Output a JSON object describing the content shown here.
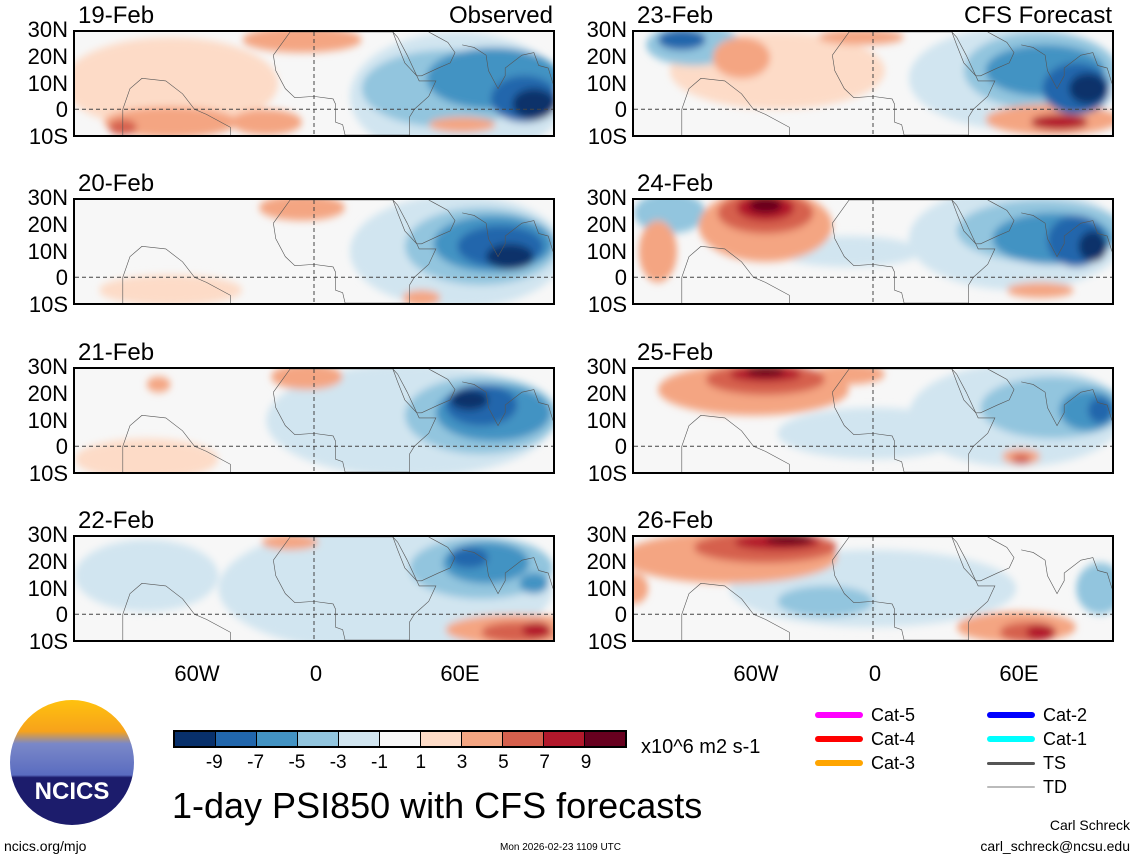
{
  "title": "1-day PSI850 with CFS forecasts",
  "units": "x10^6 m2 s-1",
  "left_label": "Observed",
  "right_label": "CFS Forecast",
  "lat_labels": [
    "30N",
    "20N",
    "10N",
    "0",
    "10S"
  ],
  "lon_labels": [
    "60W",
    "0",
    "60E"
  ],
  "colorbar": {
    "colors": [
      "#08306b",
      "#2166ac",
      "#4393c3",
      "#92c5de",
      "#d1e5f0",
      "#f7f7f7",
      "#fddbc7",
      "#f4a582",
      "#d6604d",
      "#b2182b",
      "#67001f"
    ],
    "labels": [
      "-9",
      "-7",
      "-5",
      "-3",
      "-1",
      "1",
      "3",
      "5",
      "7",
      "9"
    ]
  },
  "legend": [
    {
      "label": "Cat-5",
      "color": "#ff00ff"
    },
    {
      "label": "Cat-4",
      "color": "#ff0000"
    },
    {
      "label": "Cat-3",
      "color": "#ffa500"
    },
    {
      "label": "Cat-2",
      "color": "#0000ff"
    },
    {
      "label": "Cat-1",
      "color": "#00ffff"
    },
    {
      "label": "TS",
      "color": "#555555"
    },
    {
      "label": "TD",
      "color": "#bbbbbb"
    }
  ],
  "footer": {
    "url": "ncics.org/mjo",
    "timestamp": "Mon 2026-02-23 1109 UTC",
    "author": "Carl Schreck",
    "email": "carl_schreck@ncsu.edu",
    "logo_text": "NCICS"
  },
  "panels": [
    {
      "date": "19-Feb",
      "blobs": [
        [
          -60,
          10,
          45,
          18,
          1
        ],
        [
          -60,
          -5,
          28,
          6,
          3
        ],
        [
          -80,
          -7,
          6,
          3,
          5
        ],
        [
          -5,
          27,
          25,
          5,
          3
        ],
        [
          -20,
          -5,
          15,
          5,
          3
        ],
        [
          60,
          5,
          45,
          25,
          -1
        ],
        [
          55,
          8,
          35,
          15,
          -3
        ],
        [
          75,
          12,
          28,
          12,
          -5
        ],
        [
          88,
          4,
          14,
          9,
          -7
        ],
        [
          92,
          2,
          9,
          6,
          -9
        ],
        [
          62,
          -6,
          14,
          3,
          3
        ]
      ]
    },
    {
      "date": "20-Feb",
      "blobs": [
        [
          -60,
          -5,
          30,
          6,
          1
        ],
        [
          -5,
          27,
          18,
          5,
          3
        ],
        [
          60,
          10,
          45,
          22,
          -1
        ],
        [
          70,
          12,
          32,
          15,
          -3
        ],
        [
          75,
          13,
          25,
          11,
          -5
        ],
        [
          78,
          12,
          18,
          8,
          -7
        ],
        [
          82,
          8,
          10,
          5,
          -9
        ],
        [
          45,
          -8,
          8,
          3,
          3
        ]
      ]
    },
    {
      "date": "21-Feb",
      "blobs": [
        [
          -70,
          -5,
          30,
          8,
          1
        ],
        [
          -65,
          24,
          5,
          3,
          3
        ],
        [
          -3,
          27,
          15,
          5,
          3
        ],
        [
          40,
          10,
          60,
          22,
          -1
        ],
        [
          70,
          12,
          32,
          15,
          -3
        ],
        [
          75,
          13,
          24,
          11,
          -5
        ],
        [
          70,
          16,
          15,
          8,
          -7
        ],
        [
          65,
          18,
          8,
          4,
          -9
        ]
      ]
    },
    {
      "date": "22-Feb",
      "blobs": [
        [
          -70,
          15,
          30,
          14,
          -1
        ],
        [
          -10,
          28,
          12,
          3,
          3
        ],
        [
          30,
          10,
          70,
          25,
          -1
        ],
        [
          70,
          18,
          30,
          12,
          -3
        ],
        [
          72,
          20,
          18,
          8,
          -5
        ],
        [
          65,
          22,
          8,
          4,
          -7
        ],
        [
          85,
          -6,
          30,
          6,
          3
        ],
        [
          85,
          -7,
          15,
          4,
          5
        ],
        [
          93,
          -6,
          6,
          3,
          7
        ],
        [
          92,
          12,
          6,
          4,
          -5
        ]
      ]
    },
    {
      "date": "23-Feb",
      "blobs": [
        [
          -75,
          25,
          20,
          8,
          -3
        ],
        [
          -80,
          27,
          10,
          4,
          -7
        ],
        [
          -55,
          20,
          12,
          8,
          3
        ],
        [
          -40,
          15,
          45,
          15,
          1
        ],
        [
          -5,
          28,
          18,
          3,
          3
        ],
        [
          60,
          12,
          45,
          20,
          -1
        ],
        [
          70,
          15,
          32,
          15,
          -3
        ],
        [
          72,
          15,
          25,
          10,
          -5
        ],
        [
          85,
          8,
          14,
          10,
          -7
        ],
        [
          90,
          8,
          8,
          6,
          -9
        ],
        [
          75,
          -4,
          28,
          6,
          3
        ],
        [
          78,
          -5,
          12,
          3,
          7
        ]
      ]
    },
    {
      "date": "24-Feb",
      "blobs": [
        [
          -85,
          25,
          15,
          8,
          -3
        ],
        [
          -45,
          20,
          28,
          14,
          3
        ],
        [
          -45,
          25,
          20,
          8,
          5
        ],
        [
          -45,
          27,
          12,
          5,
          7
        ],
        [
          -45,
          28,
          7,
          3,
          9
        ],
        [
          -90,
          10,
          8,
          12,
          3
        ],
        [
          -10,
          10,
          30,
          6,
          -1
        ],
        [
          60,
          15,
          45,
          20,
          -1
        ],
        [
          70,
          18,
          35,
          12,
          -3
        ],
        [
          75,
          15,
          25,
          10,
          -5
        ],
        [
          85,
          14,
          12,
          10,
          -7
        ],
        [
          92,
          12,
          6,
          6,
          -9
        ],
        [
          70,
          -5,
          14,
          3,
          3
        ]
      ]
    },
    {
      "date": "25-Feb",
      "blobs": [
        [
          -50,
          22,
          40,
          10,
          3
        ],
        [
          -45,
          26,
          25,
          6,
          5
        ],
        [
          -45,
          28,
          15,
          3,
          7
        ],
        [
          -45,
          29,
          8,
          2,
          9
        ],
        [
          -10,
          28,
          15,
          4,
          3
        ],
        [
          0,
          5,
          40,
          10,
          -1
        ],
        [
          60,
          12,
          45,
          20,
          -1
        ],
        [
          75,
          15,
          30,
          12,
          -3
        ],
        [
          90,
          14,
          12,
          8,
          -5
        ],
        [
          95,
          14,
          5,
          5,
          -7
        ],
        [
          62,
          -4,
          8,
          3,
          3
        ],
        [
          62,
          -5,
          4,
          2,
          5
        ]
      ]
    },
    {
      "date": "26-Feb",
      "blobs": [
        [
          -60,
          22,
          45,
          10,
          3
        ],
        [
          -45,
          26,
          30,
          6,
          5
        ],
        [
          -40,
          28,
          18,
          3,
          7
        ],
        [
          -35,
          29,
          10,
          2,
          9
        ],
        [
          -100,
          10,
          6,
          6,
          3
        ],
        [
          0,
          10,
          60,
          15,
          -1
        ],
        [
          -20,
          5,
          20,
          6,
          -3
        ],
        [
          60,
          -5,
          25,
          6,
          3
        ],
        [
          65,
          -7,
          12,
          4,
          5
        ],
        [
          70,
          -7,
          6,
          3,
          7
        ],
        [
          95,
          10,
          10,
          10,
          -3
        ]
      ]
    }
  ]
}
